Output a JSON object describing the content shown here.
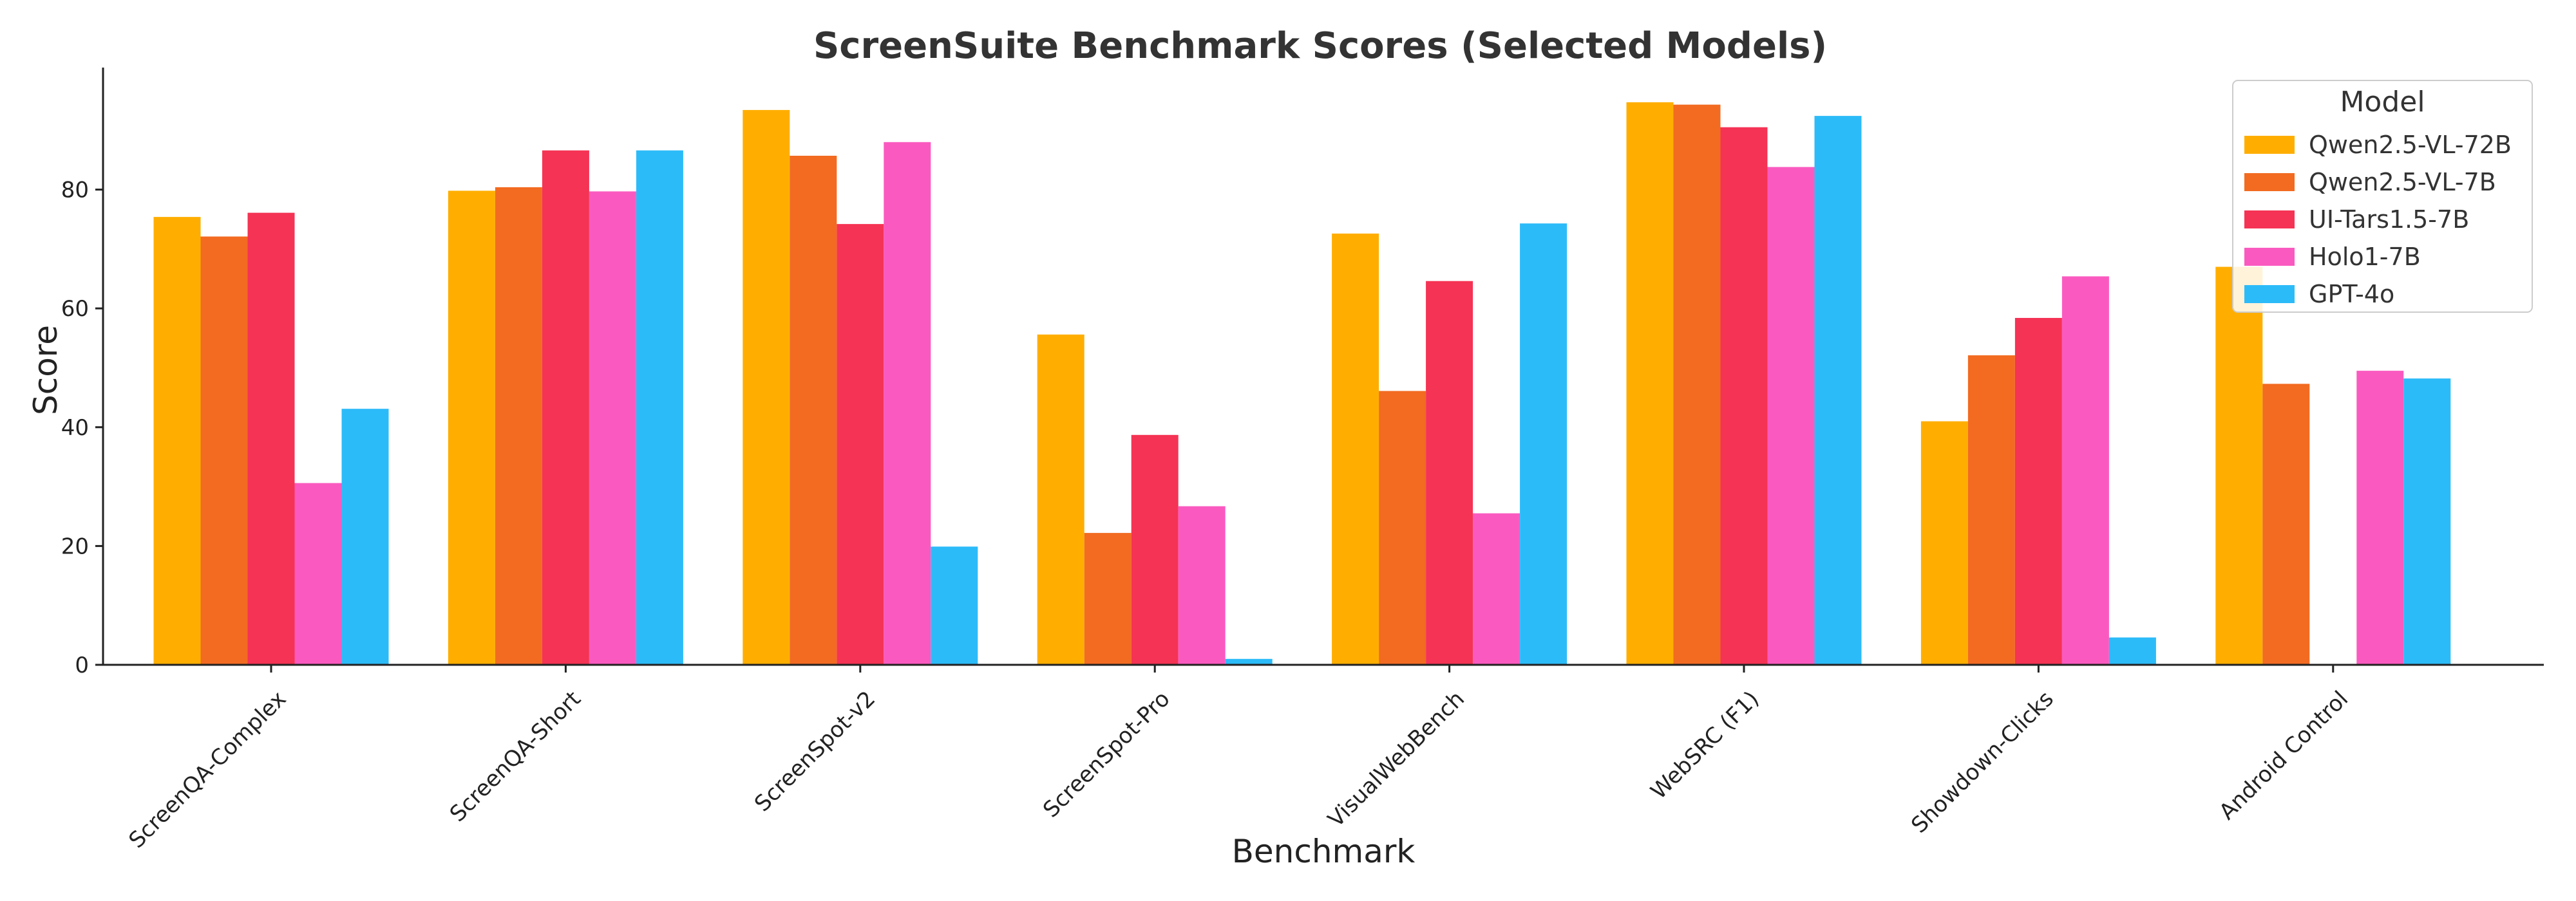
{
  "chart_data": {
    "type": "bar",
    "title": "ScreenSuite Benchmark Scores (Selected Models)",
    "xlabel": "Benchmark",
    "ylabel": "Score",
    "ylim": [
      0,
      100
    ],
    "yticks": [
      0,
      20,
      40,
      60,
      80
    ],
    "grid": false,
    "legend_title": "Model",
    "legend_position": "top-right",
    "categories": [
      "ScreenQA-Complex",
      "ScreenQA-Short",
      "ScreenSpot-v2",
      "ScreenSpot-Pro",
      "VisualWebBench",
      "WebSRC (F1)",
      "Showdown-Clicks",
      "Android Control"
    ],
    "series": [
      {
        "name": "Qwen2.5-VL-72B",
        "color": "#FFAE00",
        "values": [
          75.4,
          79.8,
          93.4,
          55.6,
          72.6,
          94.7,
          41.0,
          67.0
        ]
      },
      {
        "name": "Qwen2.5-VL-7B",
        "color": "#F26B21",
        "values": [
          72.1,
          80.4,
          85.7,
          22.2,
          46.1,
          94.3,
          52.1,
          47.3
        ]
      },
      {
        "name": "UI-Tars1.5-7B",
        "color": "#F53354",
        "values": [
          76.1,
          86.6,
          74.2,
          38.7,
          64.6,
          90.5,
          58.4,
          0
        ]
      },
      {
        "name": "Holo1-7B",
        "color": "#FA5AC0",
        "values": [
          30.6,
          79.7,
          88.0,
          26.7,
          25.5,
          83.8,
          65.4,
          49.5
        ]
      },
      {
        "name": "GPT-4o",
        "color": "#2CBBF9",
        "values": [
          43.1,
          86.6,
          19.9,
          1.0,
          74.3,
          92.4,
          4.6,
          48.2
        ]
      }
    ]
  }
}
